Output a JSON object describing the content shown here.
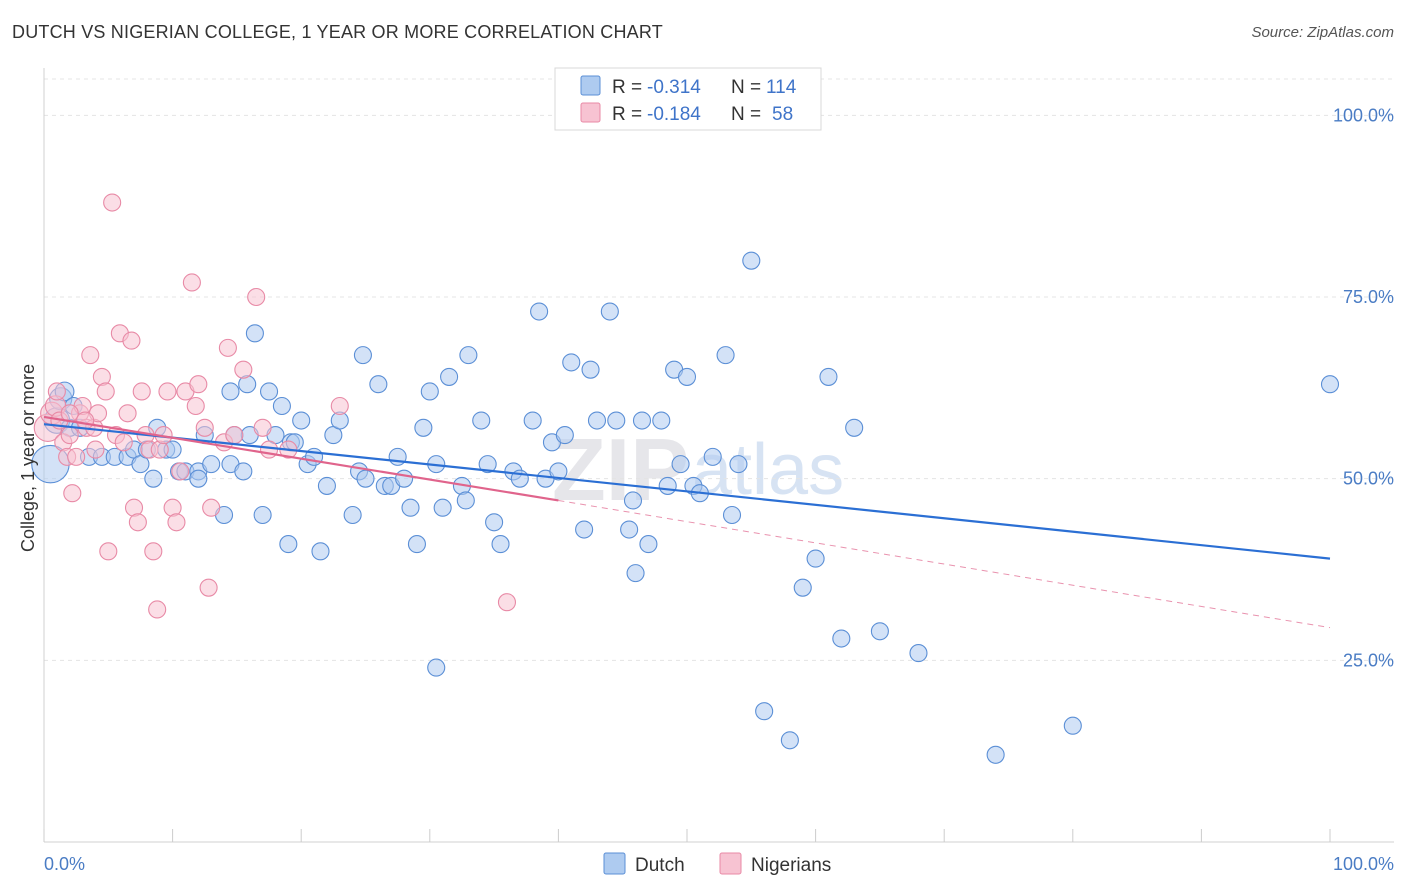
{
  "title": "DUTCH VS NIGERIAN COLLEGE, 1 YEAR OR MORE CORRELATION CHART",
  "source": "Source: ZipAtlas.com",
  "watermark": {
    "zip": "ZIP",
    "atlas": "atlas"
  },
  "legend": {
    "r_label": "R =",
    "n_label": "N =",
    "rows": [
      {
        "series": "Dutch",
        "r": "-0.314",
        "n": "114"
      },
      {
        "series": "Nigerians",
        "r": "-0.184",
        "n": "58"
      }
    ]
  },
  "chart_data": {
    "type": "scatter",
    "title": "DUTCH VS NIGERIAN COLLEGE, 1 YEAR OR MORE CORRELATION CHART",
    "xlabel": "",
    "ylabel": "College, 1 year or more",
    "xlim": [
      0,
      100
    ],
    "ylim": [
      0,
      105
    ],
    "x_tick_labels": [
      "0.0%",
      "100.0%"
    ],
    "y_ticks": [
      {
        "value": 25,
        "label": "25.0%"
      },
      {
        "value": 50,
        "label": "50.0%"
      },
      {
        "value": 75,
        "label": "75.0%"
      },
      {
        "value": 100,
        "label": "100.0%"
      }
    ],
    "grid": true,
    "legend_position": "top-center",
    "colors": {
      "Dutch": {
        "fill": "#aecbf0",
        "stroke": "#5b8fd6",
        "line": "#2b6fd4"
      },
      "Nigerians": {
        "fill": "#f7c3d2",
        "stroke": "#e88aa6",
        "line": "#e0648c"
      }
    },
    "series": [
      {
        "name": "Dutch",
        "trend": {
          "x0": 0,
          "y0": 57.5,
          "x1": 100,
          "y1": 39.0
        },
        "points": [
          [
            0.5,
            52,
            2.2
          ],
          [
            1.0,
            58,
            1.5
          ],
          [
            1.3,
            61,
            1.3
          ],
          [
            1.6,
            62,
            1.1
          ],
          [
            2.0,
            57,
            1.0
          ],
          [
            2.3,
            60,
            1.0
          ],
          [
            2.8,
            57,
            1.0
          ],
          [
            3.5,
            53,
            1.0
          ],
          [
            4.5,
            53,
            1.0
          ],
          [
            5.5,
            53,
            1.0
          ],
          [
            6.5,
            53,
            1.0
          ],
          [
            7.0,
            54,
            1.0
          ],
          [
            7.5,
            52,
            1.0
          ],
          [
            8.0,
            54,
            1.0
          ],
          [
            8.5,
            50,
            1.0
          ],
          [
            8.8,
            57,
            1.0
          ],
          [
            9.5,
            54,
            1.0
          ],
          [
            10.0,
            54,
            1.0
          ],
          [
            10.5,
            51,
            1.0
          ],
          [
            11.0,
            51,
            1.0
          ],
          [
            12.0,
            51,
            1.0
          ],
          [
            12.0,
            50,
            1.0
          ],
          [
            12.5,
            56,
            1.0
          ],
          [
            13.0,
            52,
            1.0
          ],
          [
            14.0,
            45,
            1.0
          ],
          [
            14.5,
            52,
            1.0
          ],
          [
            14.8,
            56,
            1.0
          ],
          [
            14.5,
            62,
            1.0
          ],
          [
            15.5,
            51,
            1.0
          ],
          [
            15.8,
            63,
            1.0
          ],
          [
            16.0,
            56,
            1.0
          ],
          [
            16.4,
            70,
            1.0
          ],
          [
            17.0,
            45,
            1.0
          ],
          [
            17.5,
            62,
            1.0
          ],
          [
            18.0,
            56,
            1.0
          ],
          [
            18.5,
            60,
            1.0
          ],
          [
            19.0,
            41,
            1.0
          ],
          [
            19.2,
            55,
            1.0
          ],
          [
            19.5,
            55,
            1.0
          ],
          [
            20.0,
            58,
            1.0
          ],
          [
            20.5,
            52,
            1.0
          ],
          [
            21.0,
            53,
            1.0
          ],
          [
            21.5,
            40,
            1.0
          ],
          [
            22.0,
            49,
            1.0
          ],
          [
            22.5,
            56,
            1.0
          ],
          [
            23.0,
            58,
            1.0
          ],
          [
            24.0,
            45,
            1.0
          ],
          [
            24.5,
            51,
            1.0
          ],
          [
            24.8,
            67,
            1.0
          ],
          [
            25.0,
            50,
            1.0
          ],
          [
            26.0,
            63,
            1.0
          ],
          [
            26.5,
            49,
            1.0
          ],
          [
            27.0,
            49,
            1.0
          ],
          [
            27.5,
            53,
            1.0
          ],
          [
            28.0,
            50,
            1.0
          ],
          [
            28.5,
            46,
            1.0
          ],
          [
            29.0,
            41,
            1.0
          ],
          [
            29.5,
            57,
            1.0
          ],
          [
            30.0,
            62,
            1.0
          ],
          [
            30.5,
            52,
            1.0
          ],
          [
            31.0,
            46,
            1.0
          ],
          [
            31.5,
            64,
            1.0
          ],
          [
            32.5,
            49,
            1.0
          ],
          [
            32.8,
            47,
            1.0
          ],
          [
            33.0,
            67,
            1.0
          ],
          [
            34.0,
            58,
            1.0
          ],
          [
            35.0,
            44,
            1.0
          ],
          [
            34.5,
            52,
            1.0
          ],
          [
            35.5,
            41,
            1.0
          ],
          [
            36.5,
            51,
            1.0
          ],
          [
            37.0,
            50,
            1.0
          ],
          [
            38.0,
            58,
            1.0
          ],
          [
            38.5,
            73,
            1.0
          ],
          [
            39.0,
            50,
            1.0
          ],
          [
            39.5,
            55,
            1.0
          ],
          [
            40.0,
            51,
            1.0
          ],
          [
            40.5,
            56,
            1.0
          ],
          [
            41.0,
            66,
            1.0
          ],
          [
            42.0,
            43,
            1.0
          ],
          [
            42.5,
            65,
            1.0
          ],
          [
            43.0,
            58,
            1.0
          ],
          [
            44.0,
            73,
            1.0
          ],
          [
            44.5,
            58,
            1.0
          ],
          [
            45.5,
            43,
            1.0
          ],
          [
            45.8,
            47,
            1.0
          ],
          [
            46.0,
            37,
            1.0
          ],
          [
            46.5,
            58,
            1.0
          ],
          [
            47.0,
            41,
            1.0
          ],
          [
            48.0,
            58,
            1.0
          ],
          [
            48.5,
            49,
            1.0
          ],
          [
            49.0,
            65,
            1.0
          ],
          [
            49.5,
            52,
            1.0
          ],
          [
            50.0,
            64,
            1.0
          ],
          [
            50.5,
            49,
            1.0
          ],
          [
            51.0,
            48,
            1.0
          ],
          [
            52.0,
            53,
            1.0
          ],
          [
            53.0,
            67,
            1.0
          ],
          [
            53.5,
            45,
            1.0
          ],
          [
            54.0,
            52,
            1.0
          ],
          [
            55.0,
            80,
            1.0
          ],
          [
            56.0,
            18,
            1.0
          ],
          [
            58.0,
            14,
            1.0
          ],
          [
            59.0,
            35,
            1.0
          ],
          [
            60.0,
            39,
            1.0
          ],
          [
            61.0,
            64,
            1.0
          ],
          [
            62.0,
            28,
            1.0
          ],
          [
            63.0,
            57,
            1.0
          ],
          [
            65.0,
            29,
            1.0
          ],
          [
            68.0,
            26,
            1.0
          ],
          [
            74.0,
            12,
            1.0
          ],
          [
            80.0,
            16,
            1.0
          ],
          [
            100.0,
            63,
            1.0
          ],
          [
            30.5,
            24,
            1.0
          ]
        ]
      },
      {
        "name": "Nigerians",
        "trend": {
          "x0": 0,
          "y0": 58.5,
          "x1": 40,
          "y1": 47.0
        },
        "trend_dashed": {
          "x0": 40,
          "y0": 47.0,
          "x1": 100,
          "y1": 29.5
        },
        "points": [
          [
            0.3,
            57,
            1.6
          ],
          [
            0.6,
            59,
            1.3
          ],
          [
            0.9,
            60,
            1.2
          ],
          [
            1.2,
            58,
            1.0
          ],
          [
            1.5,
            55,
            1.0
          ],
          [
            1.8,
            53,
            1.0
          ],
          [
            2.0,
            56,
            1.0
          ],
          [
            2.2,
            48,
            1.0
          ],
          [
            2.5,
            53,
            1.0
          ],
          [
            2.8,
            59,
            1.0
          ],
          [
            3.0,
            60,
            1.0
          ],
          [
            3.3,
            57,
            1.0
          ],
          [
            3.6,
            67,
            1.0
          ],
          [
            3.9,
            57,
            1.0
          ],
          [
            4.2,
            59,
            1.0
          ],
          [
            4.5,
            64,
            1.0
          ],
          [
            4.8,
            62,
            1.0
          ],
          [
            5.0,
            40,
            1.0
          ],
          [
            5.3,
            88,
            1.0
          ],
          [
            5.6,
            56,
            1.0
          ],
          [
            5.9,
            70,
            1.0
          ],
          [
            6.2,
            55,
            1.0
          ],
          [
            6.5,
            59,
            1.0
          ],
          [
            6.8,
            69,
            1.0
          ],
          [
            7.0,
            46,
            1.0
          ],
          [
            7.3,
            44,
            1.0
          ],
          [
            7.6,
            62,
            1.0
          ],
          [
            7.9,
            56,
            1.0
          ],
          [
            8.2,
            54,
            1.0
          ],
          [
            8.5,
            40,
            1.0
          ],
          [
            8.8,
            32,
            1.0
          ],
          [
            9.0,
            54,
            1.0
          ],
          [
            9.3,
            56,
            1.0
          ],
          [
            9.6,
            62,
            1.0
          ],
          [
            10.0,
            46,
            1.0
          ],
          [
            10.3,
            44,
            1.0
          ],
          [
            10.6,
            51,
            1.0
          ],
          [
            11.0,
            62,
            1.0
          ],
          [
            11.5,
            77,
            1.0
          ],
          [
            11.8,
            60,
            1.0
          ],
          [
            12.0,
            63,
            1.0
          ],
          [
            12.5,
            57,
            1.0
          ],
          [
            12.8,
            35,
            1.0
          ],
          [
            13.0,
            46,
            1.0
          ],
          [
            14.0,
            55,
            1.0
          ],
          [
            14.3,
            68,
            1.0
          ],
          [
            14.8,
            56,
            1.0
          ],
          [
            15.5,
            65,
            1.0
          ],
          [
            16.5,
            75,
            1.0
          ],
          [
            17.0,
            57,
            1.0
          ],
          [
            17.5,
            54,
            1.0
          ],
          [
            19.0,
            54,
            1.0
          ],
          [
            23.0,
            60,
            1.0
          ],
          [
            36.0,
            33,
            1.0
          ],
          [
            2.0,
            59,
            1.0
          ],
          [
            1.0,
            62,
            1.0
          ],
          [
            3.2,
            58,
            1.0
          ],
          [
            4.0,
            54,
            1.0
          ]
        ]
      }
    ]
  }
}
